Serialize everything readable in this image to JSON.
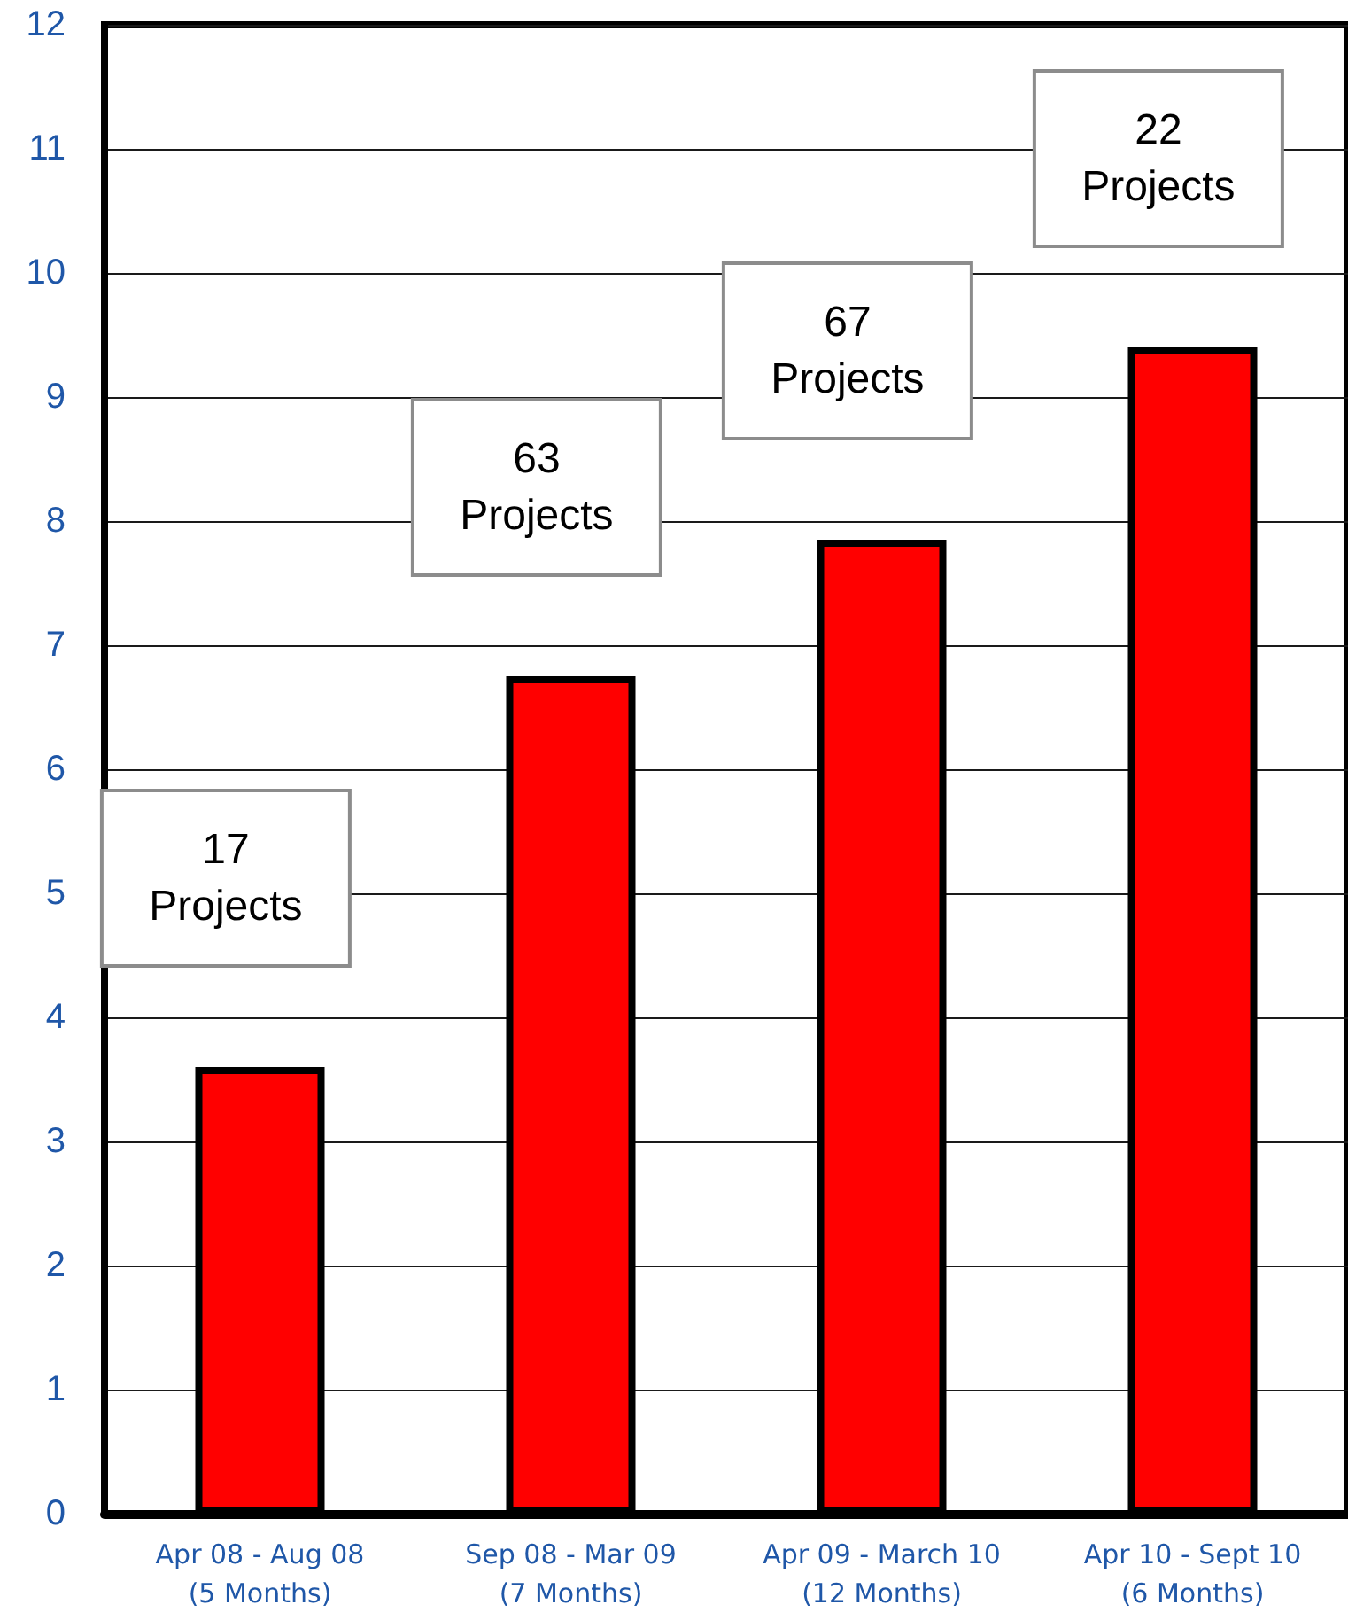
{
  "chart_data": {
    "type": "bar",
    "categories": [
      "Apr 08 - Aug 08\n(5 Months)",
      "Sep 08 - Mar 09\n(7 Months)",
      "Apr 09 - March 10\n(12 Months)",
      "Apr 10 - Sept 10\n(6 Months)"
    ],
    "values": [
      3.6,
      6.75,
      7.85,
      9.4
    ],
    "color": "#ff0000",
    "ylim": [
      0,
      12
    ],
    "yticks": [
      0,
      1,
      2,
      3,
      4,
      5,
      6,
      7,
      8,
      9,
      10,
      11,
      12
    ],
    "grid": "y",
    "annotations": [
      "17\nProjects",
      "63\nProjects",
      "67\nProjects",
      "22\nProjects"
    ]
  }
}
